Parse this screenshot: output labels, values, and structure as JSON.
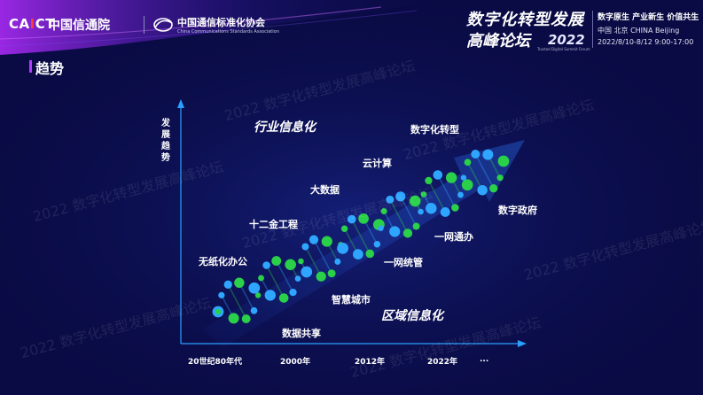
{
  "header": {
    "caict_logo": {
      "acronym_lead": "CA",
      "acronym_mark": "I",
      "acronym_tail": "CT",
      "name_cn": "中国信通院"
    },
    "ccsa_logo": {
      "name_cn": "中国通信标准化协会",
      "name_en": "China Communications Standards Association"
    },
    "forum": {
      "title_line1": "数字化转型发展",
      "title_line2": "高峰论坛",
      "year": "2022",
      "subtitle_en": "Trusted Digital Summit Forum",
      "slogan": "数字原生 产业新生 价值共生",
      "location": "中国  北京   CHINA    Beijing",
      "dates": "2022/8/10-8/12     9:00-17:00"
    }
  },
  "section_title": "趋势",
  "y_axis_label": "发展趋势",
  "eras": {
    "top": "行业信息化",
    "bottom": "区域信息化"
  },
  "upper_labels": [
    "无纸化办公",
    "十二金工程",
    "大数据",
    "云计算",
    "数字化转型"
  ],
  "lower_labels": [
    "数据共享",
    "智慧城市",
    "一网统管",
    "一网通办",
    "数字政府"
  ],
  "x_ticks": [
    "20世纪80年代",
    "2000年",
    "2012年",
    "2022年",
    "..."
  ],
  "watermark_text": "2022 数字化转型发展高峰论坛",
  "colors": {
    "background": "#0a0b45",
    "accent_purple": "#b43cff",
    "helix_green": "#2ad04a",
    "helix_blue": "#2ea6ff"
  }
}
